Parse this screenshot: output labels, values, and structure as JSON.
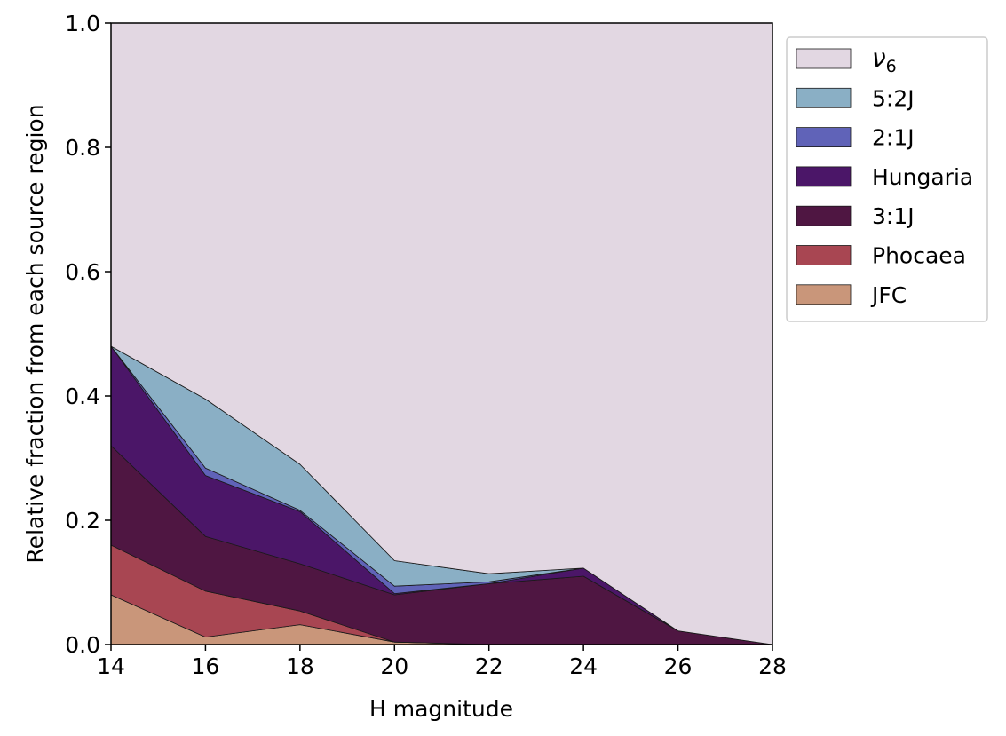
{
  "chart_data": {
    "type": "area",
    "stacked": true,
    "normalized": true,
    "title": "",
    "xlabel": "H magnitude",
    "ylabel": "Relative fraction from each source region",
    "xlim": [
      14,
      28
    ],
    "ylim": [
      0,
      1.0
    ],
    "x": [
      14,
      16,
      18,
      20,
      22,
      24,
      26,
      28
    ],
    "xticks": [
      "14",
      "16",
      "18",
      "20",
      "22",
      "24",
      "26",
      "28"
    ],
    "yticks": [
      "0.0",
      "0.2",
      "0.4",
      "0.6",
      "0.8",
      "1.0"
    ],
    "grid": false,
    "legend_position": "outside-top-right",
    "series": [
      {
        "name": "JFC",
        "color": "#c9967a",
        "values": [
          0.08,
          0.012,
          0.032,
          0.004,
          0.0,
          0.0,
          0.0,
          0.0
        ]
      },
      {
        "name": "Phocaea",
        "color": "#a84652",
        "values": [
          0.08,
          0.074,
          0.022,
          0.0,
          0.0,
          0.0,
          0.0,
          0.0
        ]
      },
      {
        "name": "3:1J",
        "color": "#4f1642",
        "values": [
          0.16,
          0.088,
          0.076,
          0.076,
          0.098,
          0.11,
          0.022,
          0.0
        ]
      },
      {
        "name": "Hungaria",
        "color": "#4b1668",
        "values": [
          0.16,
          0.098,
          0.084,
          0.002,
          0.0,
          0.013,
          0.0,
          0.0
        ]
      },
      {
        "name": "2:1J",
        "color": "#6063b8",
        "values": [
          0.0,
          0.012,
          0.002,
          0.012,
          0.003,
          0.0,
          0.0,
          0.0
        ]
      },
      {
        "name": "5:2J",
        "color": "#8aafc5",
        "values": [
          0.0,
          0.111,
          0.074,
          0.041,
          0.013,
          0.0,
          0.0,
          0.0
        ]
      },
      {
        "name": "ν6",
        "color": "#e2d7e2",
        "values": [
          0.52,
          0.605,
          0.71,
          0.865,
          0.886,
          0.877,
          0.978,
          1.0
        ]
      }
    ]
  }
}
